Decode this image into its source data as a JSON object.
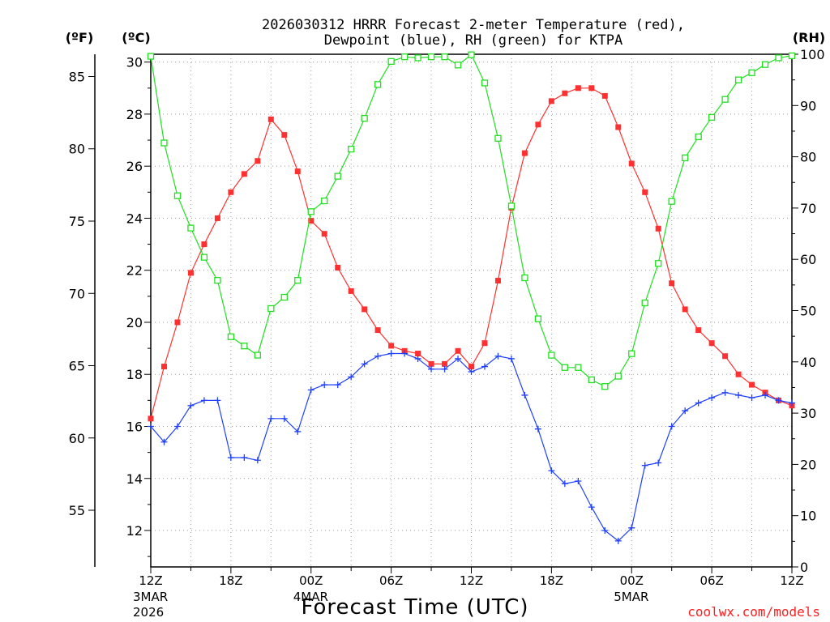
{
  "chart_data": {
    "type": "line",
    "title_line1": "2026030312 HRRR Forecast 2-meter Temperature (red),",
    "title_line2": "Dewpoint (blue), RH (green) for KTPA",
    "xlabel": "Forecast Time (UTC)",
    "left_outer_unit": "(ºF)",
    "left_inner_unit": "(ºC)",
    "right_unit": "(RH)",
    "credit": "coolwx.com/models",
    "x_range": [
      0,
      48
    ],
    "celsius_range": [
      10.6,
      30.3
    ],
    "rh_range": [
      0,
      100
    ],
    "celsius_ticks": [
      12,
      14,
      16,
      18,
      20,
      22,
      24,
      26,
      28,
      30
    ],
    "fahrenheit_ticks": [
      55,
      60,
      65,
      70,
      75,
      80,
      85
    ],
    "rh_ticks": [
      0,
      10,
      20,
      30,
      40,
      50,
      60,
      70,
      80,
      90,
      100
    ],
    "x_ticks": [
      {
        "h": 0,
        "label": "12Z"
      },
      {
        "h": 6,
        "label": "18Z"
      },
      {
        "h": 12,
        "label": "00Z"
      },
      {
        "h": 18,
        "label": "06Z"
      },
      {
        "h": 24,
        "label": "12Z"
      },
      {
        "h": 30,
        "label": "18Z"
      },
      {
        "h": 36,
        "label": "00Z"
      },
      {
        "h": 42,
        "label": "06Z"
      },
      {
        "h": 48,
        "label": "12Z"
      }
    ],
    "date_labels": [
      {
        "h": 0,
        "lines": [
          "3MAR",
          "2026"
        ]
      },
      {
        "h": 12,
        "lines": [
          "4MAR"
        ]
      },
      {
        "h": 36,
        "lines": [
          "5MAR"
        ]
      }
    ],
    "series": [
      {
        "name": "2-meter Temperature",
        "unit": "C",
        "color": "#ff3030",
        "marker": "filled-square",
        "values": [
          16.3,
          18.3,
          20.0,
          21.9,
          23.0,
          24.0,
          25.0,
          25.7,
          26.2,
          27.8,
          27.2,
          25.8,
          23.9,
          23.4,
          22.1,
          21.2,
          20.5,
          19.7,
          19.1,
          18.9,
          18.8,
          18.4,
          18.4,
          18.9,
          18.3,
          19.2,
          21.6,
          24.4,
          26.5,
          27.6,
          28.5,
          28.8,
          29.0,
          29.0,
          28.7,
          27.5,
          26.1,
          25.0,
          23.6,
          21.5,
          20.5,
          19.7,
          19.2,
          18.7,
          18.0,
          17.6,
          17.3,
          17.0,
          16.8
        ]
      },
      {
        "name": "Dewpoint",
        "unit": "C",
        "color": "#2040ff",
        "marker": "plus",
        "values": [
          16.0,
          15.4,
          16.0,
          16.8,
          17.0,
          17.0,
          14.8,
          14.8,
          14.7,
          16.3,
          16.3,
          15.8,
          17.4,
          17.6,
          17.6,
          17.9,
          18.4,
          18.7,
          18.8,
          18.8,
          18.6,
          18.2,
          18.2,
          18.6,
          18.1,
          18.3,
          18.7,
          18.6,
          17.2,
          15.9,
          14.3,
          13.8,
          13.9,
          12.9,
          12.0,
          11.6,
          12.1,
          14.5,
          14.6,
          16.0,
          16.6,
          16.9,
          17.1,
          17.3,
          17.2,
          17.1,
          17.2,
          17.0,
          16.9
        ]
      },
      {
        "name": "RH",
        "unit": "%",
        "color": "#20e020",
        "marker": "open-square",
        "values": [
          99.6,
          82.7,
          72.4,
          66.1,
          60.4,
          55.9,
          44.9,
          43.1,
          41.3,
          50.4,
          52.6,
          55.9,
          69.3,
          71.4,
          76.2,
          81.5,
          87.5,
          94.1,
          98.6,
          99.5,
          99.3,
          99.5,
          99.5,
          97.9,
          99.9,
          94.4,
          83.6,
          70.4,
          56.4,
          48.4,
          41.3,
          38.9,
          38.9,
          36.5,
          35.2,
          37.2,
          41.6,
          51.5,
          59.2,
          71.3,
          79.8,
          83.9,
          87.7,
          91.2,
          95.0,
          96.4,
          98.0,
          99.3,
          99.7
        ]
      }
    ]
  }
}
